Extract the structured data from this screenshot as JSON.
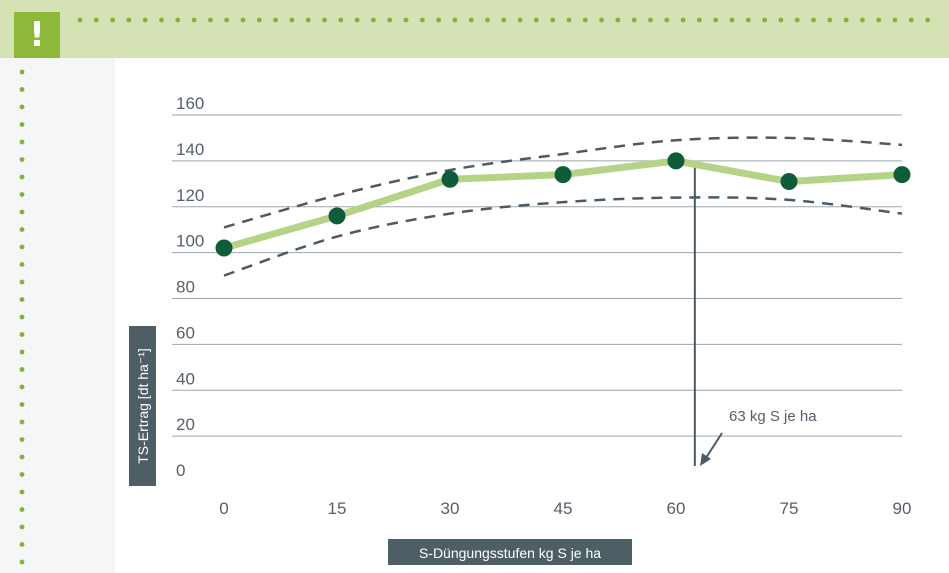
{
  "badge": {
    "symbol": "!"
  },
  "colors": {
    "frame": "#d5e3b4",
    "badge": "#8db83a",
    "dots": "#7fb33a",
    "line": "#b5d386",
    "point": "#0f5c3a",
    "dash": "#4b5a63",
    "label_bg": "#4e5e65"
  },
  "chart_data": {
    "type": "line",
    "x": [
      0,
      15,
      30,
      45,
      60,
      75,
      90
    ],
    "xticks": [
      "0",
      "15",
      "30",
      "45",
      "60",
      "75",
      "90"
    ],
    "yticks": [
      "0",
      "20",
      "40",
      "60",
      "80",
      "100",
      "120",
      "140",
      "160"
    ],
    "ylim": [
      0,
      160
    ],
    "xlim": [
      0,
      90
    ],
    "xlabel": "S-Düngungsstufen kg S je ha",
    "ylabel": "TS-Ertrag [dt ha⁻¹]",
    "series": [
      {
        "values": [
          102,
          116,
          132,
          134,
          140,
          131,
          134
        ]
      }
    ],
    "fit_bands": [
      {
        "x": [
          0,
          15,
          30,
          45,
          60,
          75,
          90
        ],
        "y": [
          111,
          125,
          136,
          143,
          149,
          150,
          147
        ]
      },
      {
        "x": [
          0,
          15,
          30,
          45,
          60,
          75,
          90
        ],
        "y": [
          90,
          107,
          117,
          122,
          124,
          123,
          117
        ]
      }
    ],
    "optimum": {
      "x": 62.5,
      "label": "63 kg S je ha"
    },
    "grid": true
  }
}
